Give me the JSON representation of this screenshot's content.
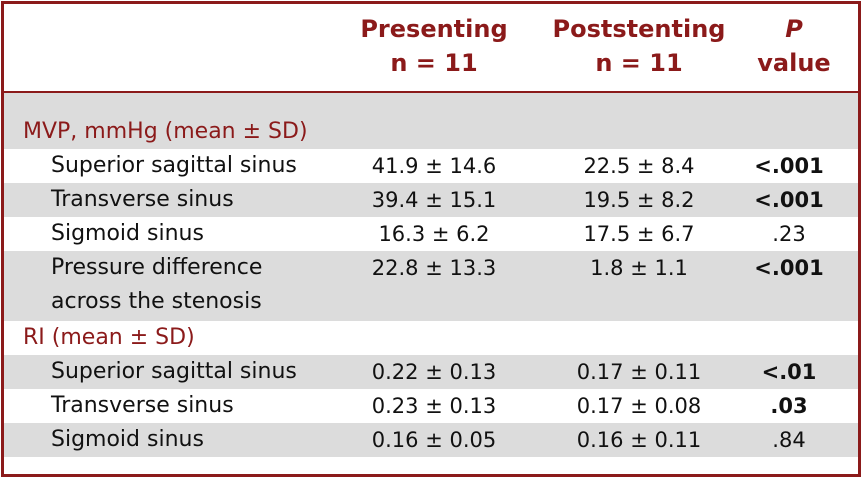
{
  "header": {
    "col1": [
      "Presenting",
      "n = 11"
    ],
    "col2": [
      "Poststenting",
      "n = 11"
    ],
    "col3": [
      "P",
      "value"
    ]
  },
  "sections": [
    {
      "title": "MVP, mmHg (mean ± SD)",
      "rows": [
        {
          "label": "Superior sagittal sinus",
          "pre": "41.9 ± 14.6",
          "post": "22.5 ± 8.4",
          "p": "<.001",
          "bold": true
        },
        {
          "label": "Transverse sinus",
          "pre": "39.4 ± 15.1",
          "post": "19.5 ± 8.2",
          "p": "<.001",
          "bold": true
        },
        {
          "label": "Sigmoid sinus",
          "pre": "16.3 ± 6.2",
          "post": "17.5 ± 6.7",
          "p": ".23",
          "bold": false
        },
        {
          "label": "Pressure difference",
          "label2": "across the stenosis",
          "pre": "22.8 ± 13.3",
          "post": "1.8 ± 1.1",
          "p": "<.001",
          "bold": true
        }
      ]
    },
    {
      "title": "RI (mean ± SD)",
      "rows": [
        {
          "label": "Superior sagittal sinus",
          "pre": "0.22 ± 0.13",
          "post": "0.17 ± 0.11",
          "p": "<.01",
          "bold": true
        },
        {
          "label": "Transverse sinus",
          "pre": "0.23 ± 0.13",
          "post": "0.17 ± 0.08",
          "p": ".03",
          "bold": true
        },
        {
          "label": "Sigmoid sinus",
          "pre": "0.16 ± 0.05",
          "post": "0.16 ± 0.11",
          "p": ".84",
          "bold": false
        }
      ]
    }
  ],
  "colors": {
    "accent": "#8b1a1a",
    "band": "#dcdcdc"
  }
}
